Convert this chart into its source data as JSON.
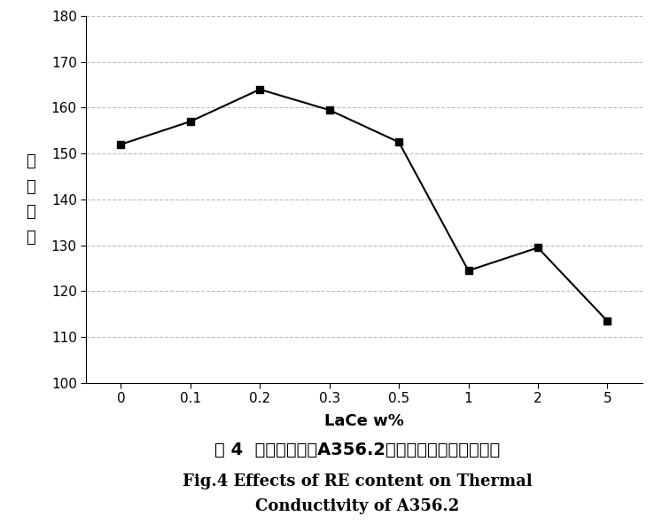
{
  "x_values": [
    0,
    0.1,
    0.2,
    0.3,
    0.5,
    1,
    2,
    5
  ],
  "y_values": [
    152,
    157,
    164,
    159.5,
    152.5,
    124.5,
    129.5,
    113.5
  ],
  "x_tick_labels": [
    "0",
    "0.1",
    "0.2",
    "0.3",
    "0.5",
    "1",
    "2",
    "5"
  ],
  "ylim": [
    100,
    180
  ],
  "yticks": [
    100,
    110,
    120,
    130,
    140,
    150,
    160,
    170,
    180
  ],
  "xlabel": "LaCe w%",
  "ylabel_chars": [
    "导",
    "热",
    "系",
    "数"
  ],
  "line_color": "#000000",
  "marker": "s",
  "marker_size": 6,
  "marker_color": "#000000",
  "grid_color": "#bbbbbb",
  "grid_style": "--",
  "grid_alpha": 1.0,
  "caption_cn": "图 4  稀土加入量对A356.2铝合金导热系数的影响。",
  "caption_en1": "Fig.4 Effects of RE content on Thermal",
  "caption_en2": "Conductivity of A356.2",
  "fontsize_cn_caption": 14,
  "fontsize_en_caption": 13,
  "xlabel_fontsize": 13,
  "ylabel_fontsize": 13,
  "tick_fontsize": 11,
  "background_color": "#ffffff"
}
